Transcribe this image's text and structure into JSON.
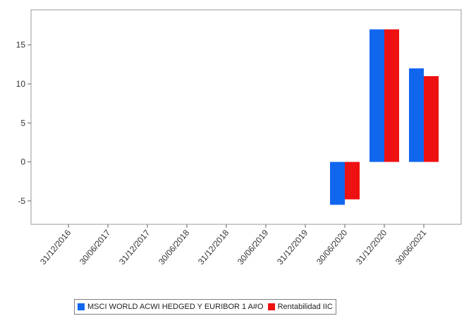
{
  "chart_data": {
    "type": "bar",
    "title": "",
    "xlabel": "",
    "ylabel": "",
    "categories": [
      "31/12/2016",
      "30/06/2017",
      "31/12/2017",
      "30/06/2018",
      "31/12/2018",
      "30/06/2019",
      "31/12/2019",
      "30/06/2020",
      "31/12/2020",
      "30/06/2021"
    ],
    "series": [
      {
        "name": "MSCI WORLD ACWI HEDGED Y EURIBOR 1 A#O",
        "color": "#1166ee",
        "values": [
          null,
          null,
          null,
          null,
          null,
          null,
          null,
          -5.5,
          17,
          12
        ]
      },
      {
        "name": "Rentabilidad IIC",
        "color": "#ee1111",
        "values": [
          null,
          null,
          null,
          null,
          null,
          null,
          null,
          -4.8,
          17,
          11
        ]
      }
    ],
    "ylim": [
      -8,
      19.5
    ],
    "yticks": [
      -5,
      0,
      5,
      10,
      15
    ],
    "grid": false,
    "legend_position": "bottom"
  }
}
